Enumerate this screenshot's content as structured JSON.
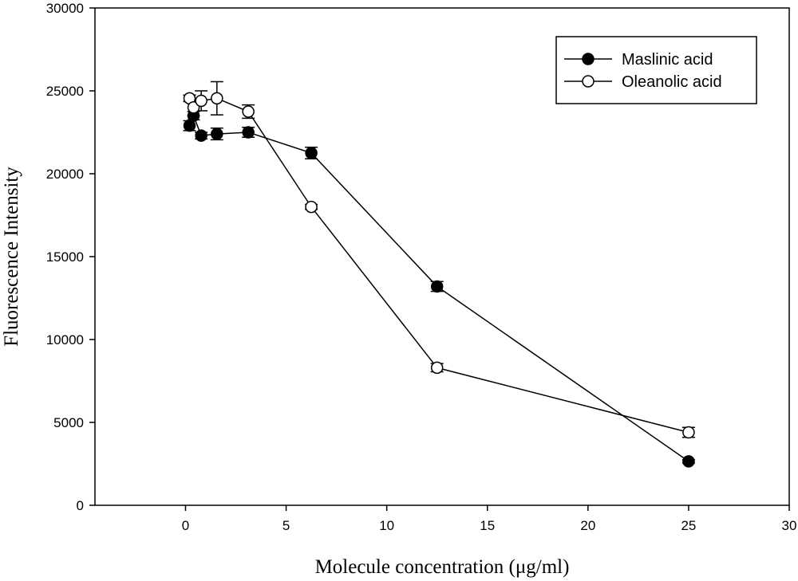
{
  "chart_data": {
    "type": "scatter",
    "xlabel": "Molecule concentration (μg/ml)",
    "ylabel": "Fluorescence Intensity",
    "xlim": [
      -4.5,
      30
    ],
    "ylim": [
      0,
      30000
    ],
    "xticks": [
      0,
      5,
      10,
      15,
      20,
      25,
      30
    ],
    "xtick_labels": [
      "0",
      "5",
      "10",
      "15",
      "20",
      "25",
      "30"
    ],
    "yticks": [
      0,
      5000,
      10000,
      15000,
      20000,
      25000,
      30000
    ],
    "ytick_labels": [
      "0",
      "5000",
      "10000",
      "15000",
      "20000",
      "25000",
      "30000"
    ],
    "grid": false,
    "legend_position": "top-right",
    "series": [
      {
        "name": "Maslinic acid",
        "marker": "filled-circle",
        "color": "#000000",
        "x": [
          0.2,
          0.4,
          0.78,
          1.56,
          3.12,
          6.25,
          12.5,
          25
        ],
        "y": [
          22900,
          23500,
          22300,
          22400,
          22500,
          21250,
          13200,
          2650
        ],
        "err": [
          300,
          250,
          200,
          350,
          300,
          350,
          300,
          100
        ]
      },
      {
        "name": "Oleanolic acid",
        "marker": "open-circle",
        "color": "#000000",
        "x": [
          0.2,
          0.4,
          0.78,
          1.56,
          3.12,
          6.25,
          12.5,
          25
        ],
        "y": [
          24550,
          24000,
          24400,
          24550,
          23750,
          18000,
          8300,
          4400
        ],
        "err": [
          200,
          500,
          600,
          1000,
          400,
          150,
          250,
          300
        ]
      }
    ]
  }
}
